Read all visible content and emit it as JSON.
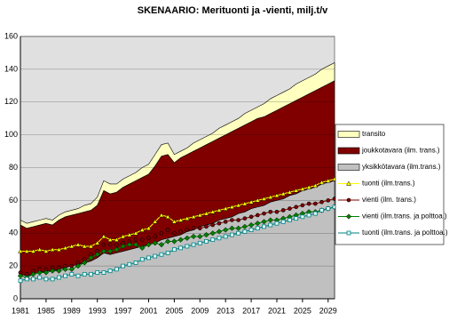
{
  "chart_data": {
    "type": "stacked-area-line",
    "title": "SKENAARIO: Merituonti ja -vienti, milj.t/v",
    "x": [
      1981,
      1982,
      1983,
      1984,
      1985,
      1986,
      1987,
      1988,
      1989,
      1990,
      1991,
      1992,
      1993,
      1994,
      1995,
      1996,
      1997,
      1998,
      1999,
      2000,
      2001,
      2002,
      2003,
      2004,
      2005,
      2006,
      2007,
      2008,
      2009,
      2010,
      2011,
      2012,
      2013,
      2014,
      2015,
      2016,
      2017,
      2018,
      2019,
      2020,
      2021,
      2022,
      2023,
      2024,
      2025,
      2026,
      2027,
      2028,
      2029,
      2030
    ],
    "xlim": [
      1981,
      2030
    ],
    "xticks": [
      1981,
      1985,
      1989,
      1993,
      1997,
      2001,
      2005,
      2009,
      2013,
      2017,
      2021,
      2025,
      2029
    ],
    "ylim": [
      0,
      160
    ],
    "yticks": [
      0,
      20,
      40,
      60,
      80,
      100,
      120,
      140,
      160
    ],
    "grid": true,
    "series": [
      {
        "name": "transito",
        "kind": "area",
        "color": "#ffffc0",
        "values": [
          3,
          3,
          3,
          3,
          3,
          3,
          3,
          3,
          3,
          3,
          4,
          4,
          5,
          6,
          6,
          5,
          5,
          5,
          5,
          6,
          6,
          7,
          7,
          7,
          5,
          4,
          4,
          5,
          5,
          5,
          5,
          6,
          6,
          6,
          6,
          7,
          7,
          7,
          8,
          9,
          9,
          9,
          9,
          10,
          10,
          10,
          10,
          11,
          11,
          11
        ]
      },
      {
        "name": "joukkotavara (ilm. trans.)",
        "kind": "area",
        "color": "#800000",
        "values": [
          30,
          29,
          29,
          29,
          29,
          28,
          30,
          31,
          31,
          31,
          31,
          31,
          32,
          38,
          37,
          37,
          39,
          40,
          41,
          42,
          43,
          47,
          51,
          51,
          45,
          47,
          47,
          48,
          48,
          49,
          50,
          50,
          51,
          52,
          52,
          53,
          53,
          54,
          54,
          54,
          55,
          56,
          56,
          57,
          57,
          58,
          59,
          59,
          60,
          61
        ]
      },
      {
        "name": "yksikkötavara (ilm.trans.)",
        "kind": "area",
        "color": "#c0c0c0",
        "values": [
          15,
          14,
          15,
          16,
          17,
          17,
          18,
          19,
          20,
          21,
          22,
          23,
          25,
          28,
          27,
          28,
          29,
          30,
          31,
          32,
          33,
          34,
          36,
          37,
          38,
          39,
          41,
          42,
          44,
          45,
          46,
          48,
          49,
          50,
          52,
          53,
          55,
          56,
          57,
          59,
          60,
          61,
          63,
          64,
          66,
          67,
          68,
          70,
          71,
          72
        ]
      },
      {
        "name": "tuonti (ilm.trans.)",
        "kind": "line",
        "marker": "triangle",
        "color": "#ffff00",
        "values": [
          29,
          29,
          29,
          30,
          29,
          30,
          30,
          31,
          32,
          33,
          32,
          32,
          34,
          38,
          36,
          36,
          38,
          39,
          40,
          42,
          43,
          47,
          51,
          50,
          47,
          48,
          49,
          50,
          51,
          52,
          53,
          54,
          55,
          56,
          57,
          58,
          59,
          60,
          61,
          62,
          63,
          64,
          65,
          66,
          67,
          68,
          69,
          71,
          72,
          73
        ]
      },
      {
        "name": "vienti (ilm. trans.)",
        "kind": "line",
        "marker": "circle",
        "color": "#800000",
        "values": [
          16,
          15,
          17,
          18,
          18,
          19,
          19,
          20,
          20,
          22,
          24,
          27,
          29,
          33,
          33,
          33,
          34,
          35,
          36,
          36,
          37,
          38,
          40,
          42,
          40,
          41,
          42,
          43,
          43,
          44,
          45,
          46,
          47,
          48,
          48,
          49,
          50,
          51,
          52,
          53,
          53,
          54,
          55,
          56,
          57,
          58,
          58,
          59,
          60,
          61
        ]
      },
      {
        "name": "vienti (ilm.trans. ja polttoa.)",
        "kind": "line",
        "marker": "diamond",
        "color": "#008000",
        "values": [
          14,
          13,
          15,
          16,
          16,
          17,
          17,
          18,
          18,
          20,
          22,
          25,
          27,
          29,
          29,
          30,
          32,
          33,
          33,
          31,
          33,
          34,
          33,
          35,
          35,
          36,
          37,
          38,
          38,
          39,
          40,
          41,
          42,
          43,
          43,
          44,
          45,
          46,
          47,
          48,
          48,
          49,
          50,
          51,
          52,
          53,
          53,
          54,
          55,
          56
        ]
      },
      {
        "name": "tuonti (ilm.trans. ja polttoa.)",
        "kind": "line",
        "marker": "square",
        "color": "#008080",
        "values": [
          11,
          12,
          12,
          13,
          12,
          12,
          13,
          14,
          15,
          14,
          15,
          15,
          16,
          16,
          17,
          18,
          20,
          21,
          22,
          24,
          25,
          26,
          27,
          28,
          30,
          31,
          32,
          33,
          34,
          35,
          36,
          37,
          38,
          39,
          40,
          41,
          42,
          43,
          44,
          45,
          46,
          47,
          48,
          49,
          50,
          51,
          52,
          54,
          55,
          56
        ]
      }
    ]
  }
}
